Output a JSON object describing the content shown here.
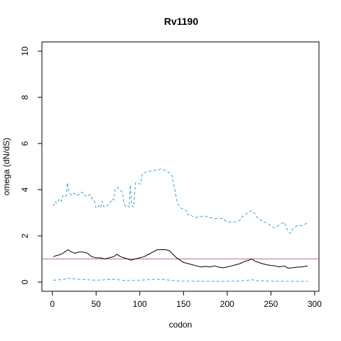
{
  "chart_data": {
    "type": "line",
    "title": "Rv1190",
    "xlabel": "codon",
    "ylabel": "omega (dN/dS)",
    "xlim": [
      -12,
      305
    ],
    "ylim": [
      -0.4,
      10.4
    ],
    "x_ticks": [
      0,
      50,
      100,
      150,
      200,
      250,
      300
    ],
    "y_ticks": [
      0,
      2,
      4,
      6,
      8,
      10
    ],
    "reference_line": {
      "y": 1,
      "color": "#cc66aa"
    },
    "grid": false,
    "series": [
      {
        "style": "dashed",
        "color": "#3aa0dd",
        "points": [
          [
            1,
            3.3
          ],
          [
            3,
            3.5
          ],
          [
            5,
            3.4
          ],
          [
            8,
            3.6
          ],
          [
            10,
            3.5
          ],
          [
            12,
            3.75
          ],
          [
            14,
            3.7
          ],
          [
            16,
            3.75
          ],
          [
            17,
            4.3
          ],
          [
            19,
            3.9
          ],
          [
            22,
            3.75
          ],
          [
            25,
            3.85
          ],
          [
            28,
            3.75
          ],
          [
            31,
            3.8
          ],
          [
            34,
            3.9
          ],
          [
            37,
            3.75
          ],
          [
            40,
            3.7
          ],
          [
            43,
            3.8
          ],
          [
            46,
            3.55
          ],
          [
            48,
            3.5
          ],
          [
            50,
            3.2
          ],
          [
            53,
            3.3
          ],
          [
            55,
            3.2
          ],
          [
            57,
            3.5
          ],
          [
            59,
            3.25
          ],
          [
            62,
            3.3
          ],
          [
            65,
            3.35
          ],
          [
            68,
            3.6
          ],
          [
            70,
            3.55
          ],
          [
            72,
            4.05
          ],
          [
            75,
            4.1
          ],
          [
            78,
            3.95
          ],
          [
            80,
            3.9
          ],
          [
            82,
            3.4
          ],
          [
            84,
            3.25
          ],
          [
            86,
            3.3
          ],
          [
            88,
            3.25
          ],
          [
            89,
            4.2
          ],
          [
            91,
            3.3
          ],
          [
            93,
            3.25
          ],
          [
            95,
            4.3
          ],
          [
            97,
            4.3
          ],
          [
            99,
            4.25
          ],
          [
            101,
            4.25
          ],
          [
            103,
            4.7
          ],
          [
            106,
            4.75
          ],
          [
            109,
            4.8
          ],
          [
            112,
            4.8
          ],
          [
            115,
            4.8
          ],
          [
            118,
            4.85
          ],
          [
            121,
            4.85
          ],
          [
            124,
            4.9
          ],
          [
            128,
            4.85
          ],
          [
            131,
            4.8
          ],
          [
            133,
            4.75
          ],
          [
            135,
            4.7
          ],
          [
            137,
            4.6
          ],
          [
            139,
            4.2
          ],
          [
            141,
            3.8
          ],
          [
            143,
            3.4
          ],
          [
            145,
            3.3
          ],
          [
            147,
            3.2
          ],
          [
            150,
            3.15
          ],
          [
            153,
            3.1
          ],
          [
            155,
            2.9
          ],
          [
            157,
            2.95
          ],
          [
            160,
            2.85
          ],
          [
            165,
            2.8
          ],
          [
            170,
            2.85
          ],
          [
            175,
            2.85
          ],
          [
            180,
            2.8
          ],
          [
            185,
            2.75
          ],
          [
            190,
            2.75
          ],
          [
            195,
            2.75
          ],
          [
            200,
            2.6
          ],
          [
            205,
            2.6
          ],
          [
            210,
            2.6
          ],
          [
            215,
            2.7
          ],
          [
            218,
            2.85
          ],
          [
            222,
            2.95
          ],
          [
            225,
            3.05
          ],
          [
            228,
            3.1
          ],
          [
            232,
            2.95
          ],
          [
            235,
            2.75
          ],
          [
            240,
            2.65
          ],
          [
            245,
            2.55
          ],
          [
            250,
            2.45
          ],
          [
            253,
            2.35
          ],
          [
            257,
            2.4
          ],
          [
            260,
            2.5
          ],
          [
            263,
            2.55
          ],
          [
            265,
            2.6
          ],
          [
            267,
            2.4
          ],
          [
            270,
            2.2
          ],
          [
            272,
            2.1
          ],
          [
            275,
            2.3
          ],
          [
            278,
            2.4
          ],
          [
            281,
            2.45
          ],
          [
            285,
            2.45
          ],
          [
            288,
            2.5
          ],
          [
            292,
            2.55
          ]
        ]
      },
      {
        "style": "solid",
        "color": "#000000",
        "points": [
          [
            1,
            1.1
          ],
          [
            5,
            1.15
          ],
          [
            10,
            1.2
          ],
          [
            14,
            1.3
          ],
          [
            18,
            1.4
          ],
          [
            22,
            1.3
          ],
          [
            26,
            1.25
          ],
          [
            30,
            1.3
          ],
          [
            35,
            1.3
          ],
          [
            40,
            1.25
          ],
          [
            45,
            1.1
          ],
          [
            50,
            1.05
          ],
          [
            55,
            1.05
          ],
          [
            60,
            1.0
          ],
          [
            65,
            1.05
          ],
          [
            70,
            1.1
          ],
          [
            74,
            1.2
          ],
          [
            78,
            1.1
          ],
          [
            82,
            1.05
          ],
          [
            86,
            1.0
          ],
          [
            90,
            0.95
          ],
          [
            95,
            1.0
          ],
          [
            100,
            1.05
          ],
          [
            105,
            1.1
          ],
          [
            110,
            1.2
          ],
          [
            115,
            1.3
          ],
          [
            120,
            1.4
          ],
          [
            125,
            1.4
          ],
          [
            130,
            1.4
          ],
          [
            134,
            1.35
          ],
          [
            138,
            1.2
          ],
          [
            142,
            1.05
          ],
          [
            146,
            0.95
          ],
          [
            150,
            0.85
          ],
          [
            155,
            0.8
          ],
          [
            160,
            0.75
          ],
          [
            165,
            0.7
          ],
          [
            170,
            0.65
          ],
          [
            175,
            0.68
          ],
          [
            180,
            0.65
          ],
          [
            185,
            0.7
          ],
          [
            190,
            0.65
          ],
          [
            195,
            0.62
          ],
          [
            200,
            0.65
          ],
          [
            205,
            0.7
          ],
          [
            210,
            0.75
          ],
          [
            215,
            0.8
          ],
          [
            220,
            0.9
          ],
          [
            225,
            0.95
          ],
          [
            228,
            1.0
          ],
          [
            232,
            0.9
          ],
          [
            236,
            0.85
          ],
          [
            240,
            0.8
          ],
          [
            245,
            0.75
          ],
          [
            250,
            0.72
          ],
          [
            255,
            0.7
          ],
          [
            260,
            0.65
          ],
          [
            265,
            0.7
          ],
          [
            270,
            0.6
          ],
          [
            275,
            0.62
          ],
          [
            280,
            0.65
          ],
          [
            285,
            0.65
          ],
          [
            292,
            0.7
          ]
        ]
      },
      {
        "style": "dashed",
        "color": "#3aa0dd",
        "points": [
          [
            1,
            0.08
          ],
          [
            8,
            0.1
          ],
          [
            14,
            0.12
          ],
          [
            16,
            0.18
          ],
          [
            20,
            0.15
          ],
          [
            30,
            0.12
          ],
          [
            40,
            0.1
          ],
          [
            50,
            0.08
          ],
          [
            60,
            0.1
          ],
          [
            70,
            0.12
          ],
          [
            80,
            0.08
          ],
          [
            90,
            0.06
          ],
          [
            100,
            0.08
          ],
          [
            110,
            0.1
          ],
          [
            120,
            0.12
          ],
          [
            130,
            0.1
          ],
          [
            140,
            0.06
          ],
          [
            150,
            0.04
          ],
          [
            170,
            0.03
          ],
          [
            190,
            0.03
          ],
          [
            210,
            0.04
          ],
          [
            220,
            0.06
          ],
          [
            228,
            0.1
          ],
          [
            235,
            0.06
          ],
          [
            250,
            0.04
          ],
          [
            270,
            0.03
          ],
          [
            292,
            0.03
          ]
        ]
      }
    ]
  }
}
